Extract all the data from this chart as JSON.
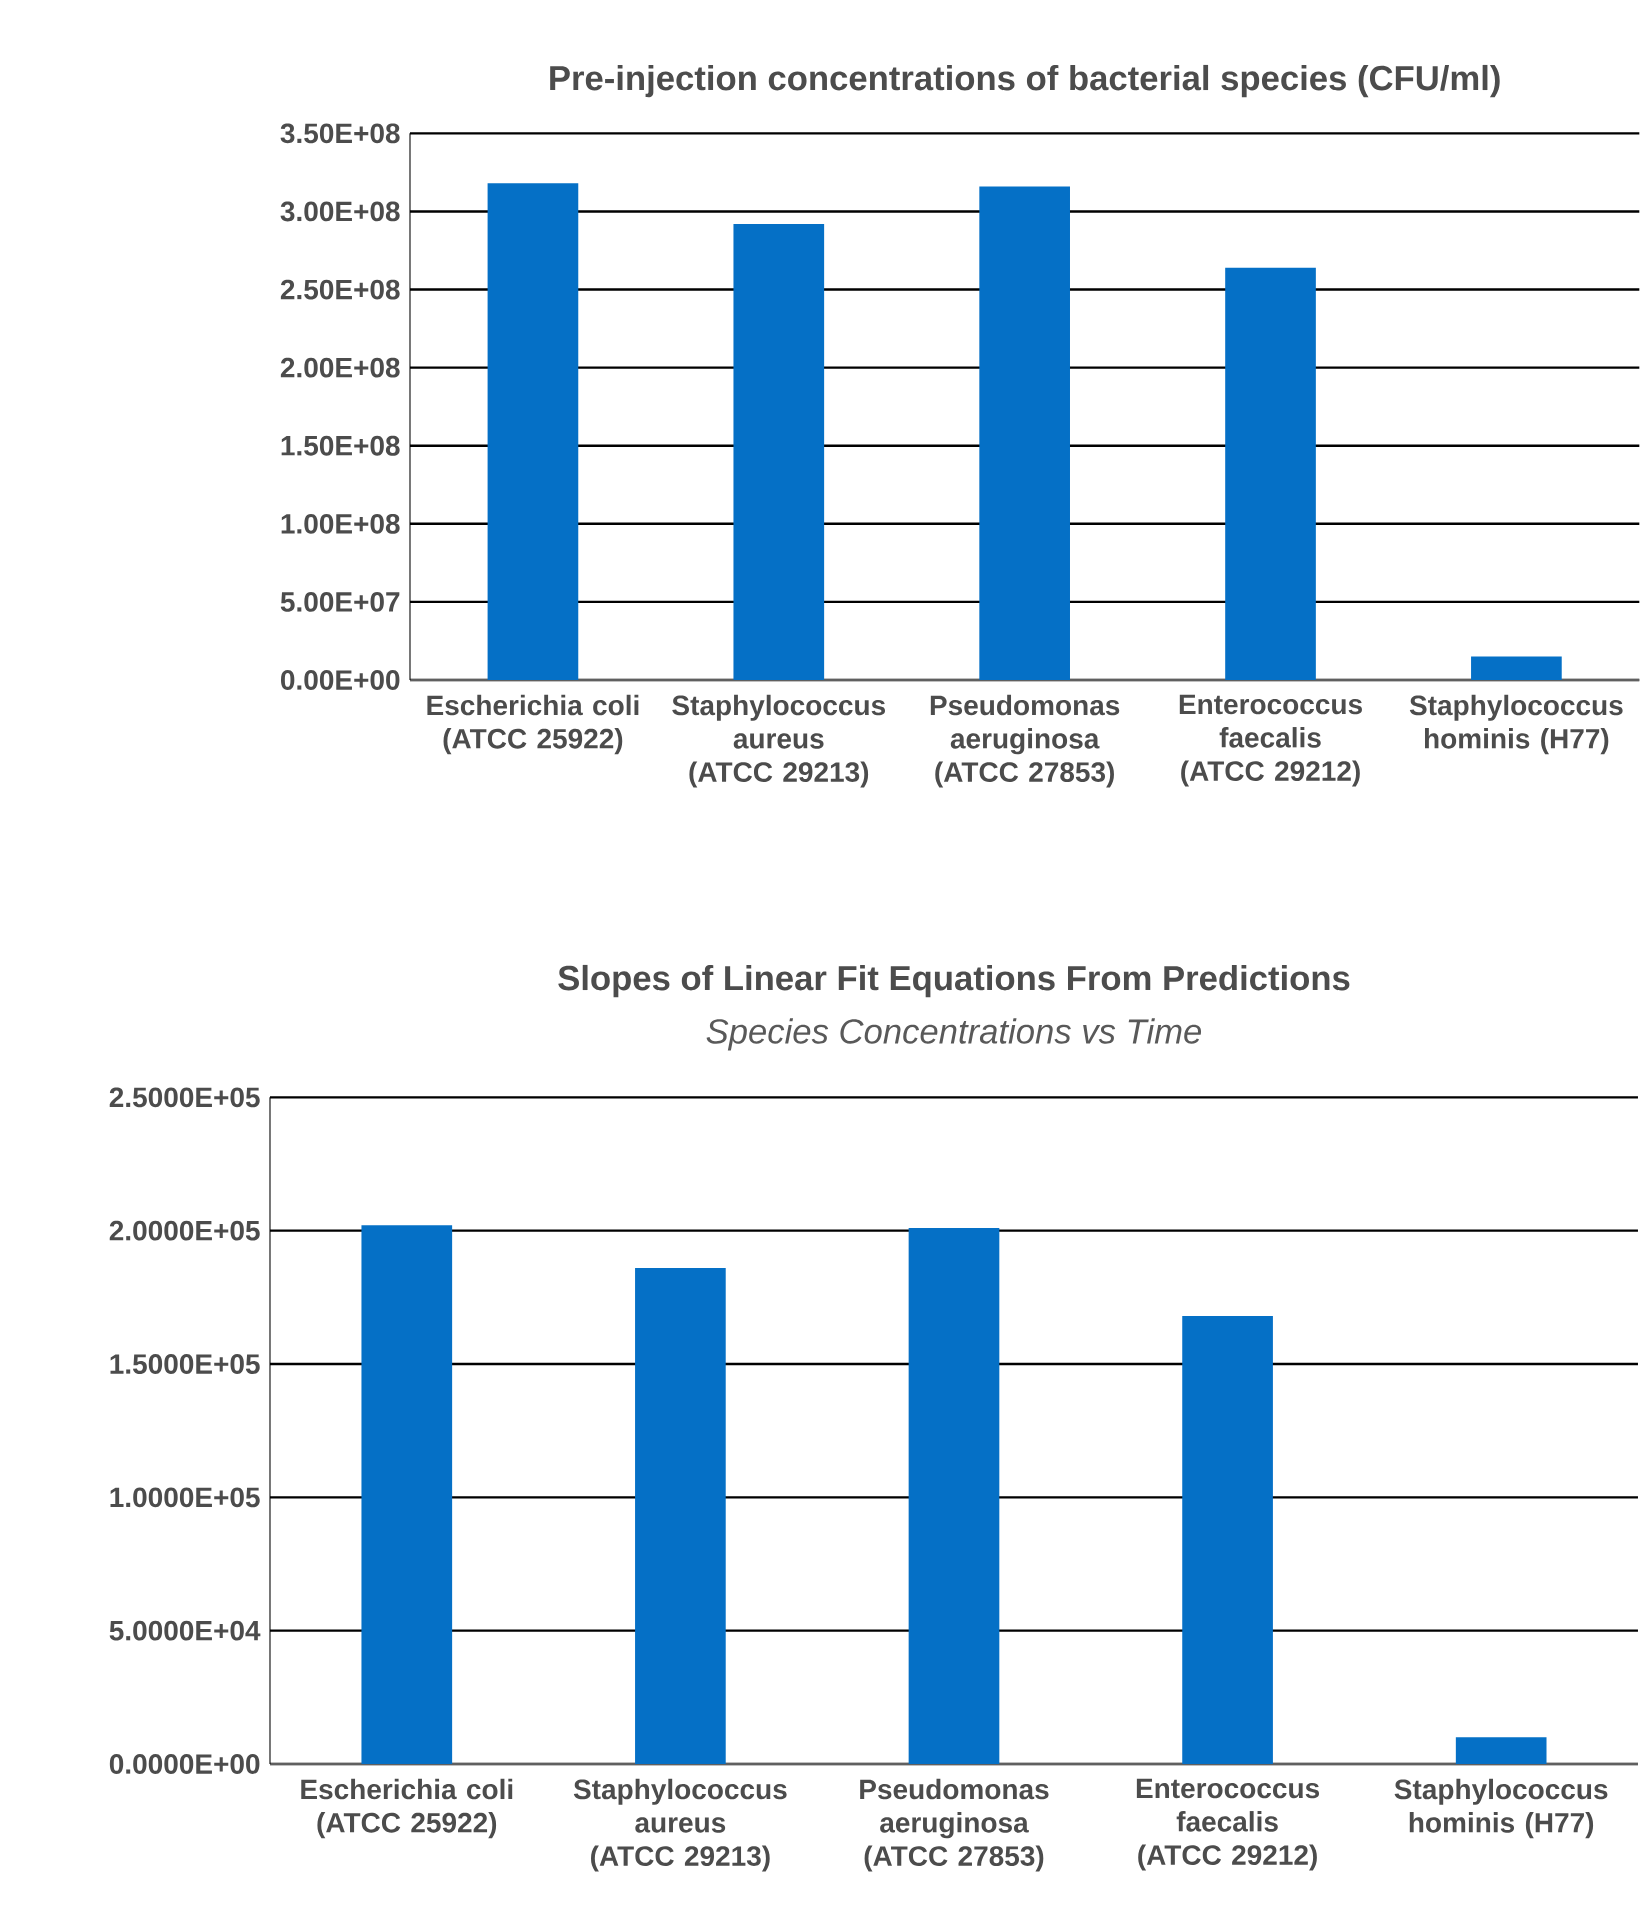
{
  "chart_data": [
    {
      "type": "bar",
      "title": "**Pre-injection concentrations of bacterial species**  (CFU/ml)",
      "categories": [
        "Escherichia coli (ATCC 25922)",
        "Staphylococcus aureus (ATCC 29213)",
        "Pseudomonas aeruginosa (ATCC 27853)",
        "Enterococcus faecalis (ATCC 29212)",
        "Staphylococcus hominis (H77)"
      ],
      "values": [
        318000000,
        292000000,
        316000000,
        264000000,
        15000000
      ],
      "color": "#0570c6",
      "grid": "y",
      "ylim": [
        0,
        350000000
      ],
      "yticks": [
        {
          "value": 0,
          "label": "0.00E+00"
        },
        {
          "value": 50000000,
          "label": "5.00E+07"
        },
        {
          "value": 100000000,
          "label": "1.00E+08"
        },
        {
          "value": 150000000,
          "label": "1.50E+08"
        },
        {
          "value": 200000000,
          "label": "2.00E+08"
        },
        {
          "value": 250000000,
          "label": "2.50E+08"
        },
        {
          "value": 300000000,
          "label": "3.00E+08"
        },
        {
          "value": 350000000,
          "label": "3.50E+08"
        }
      ]
    },
    {
      "type": "bar",
      "title": "Slopes of Linear Fit Equations From Predictions",
      "subtitle": "Species Concentrations vs Time",
      "categories": [
        "Escherichia coli (ATCC 25922)",
        "Staphylococcus aureus (ATCC 29213)",
        "Pseudomonas aeruginosa (ATCC 27853)",
        "Enterococcus faecalis (ATCC 29212)",
        "Staphylococcus hominis (H77)"
      ],
      "values": [
        202000,
        186000,
        201000,
        168000,
        10000
      ],
      "color": "#0570c6",
      "grid": "y",
      "ylim": [
        0,
        250000
      ],
      "yticks": [
        {
          "value": 0,
          "label": "0.0000E+00"
        },
        {
          "value": 50000,
          "label": "5.0000E+04"
        },
        {
          "value": 100000,
          "label": "1.0000E+05"
        },
        {
          "value": 150000,
          "label": "1.5000E+05"
        },
        {
          "value": 200000,
          "label": "2.0000E+05"
        },
        {
          "value": 250000,
          "label": "2.5000E+05"
        }
      ]
    }
  ]
}
